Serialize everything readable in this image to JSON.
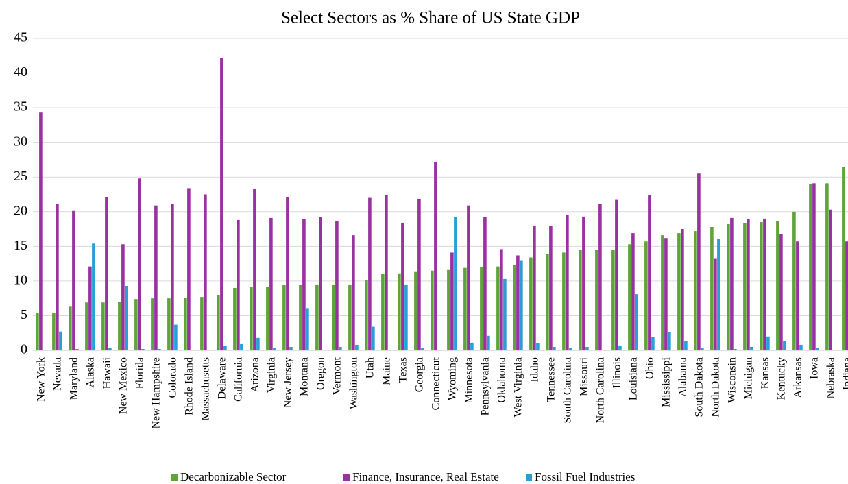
{
  "chart_data": {
    "type": "bar",
    "title": "Select Sectors as % Share of US State GDP",
    "categories": [
      "New York",
      "Nevada",
      "Maryland",
      "Alaska",
      "Hawaii",
      "New Mexico",
      "Florida",
      "New Hampshire",
      "Colorado",
      "Rhode Island",
      "Massachusetts",
      "Delaware",
      "California",
      "Arizona",
      "Virginia",
      "New Jersey",
      "Montana",
      "Oregon",
      "Vermont",
      "Washington",
      "Utah",
      "Maine",
      "Texas",
      "Georgia",
      "Connecticut",
      "Wyoming",
      "Minnesota",
      "Pennsylvania",
      "Oklahoma",
      "West Virginia",
      "Idaho",
      "Tennessee",
      "South Carolina",
      "Missouri",
      "North Carolina",
      "Illinois",
      "Louisiana",
      "Ohio",
      "Mississippi",
      "Alabama",
      "South Dakota",
      "North Dakota",
      "Wisconsin",
      "Michigan",
      "Kansas",
      "Kentucky",
      "Arkansas",
      "Iowa",
      "Nebraska",
      "Indiana"
    ],
    "series": [
      {
        "name": "Decarbonizable Sector",
        "color": "#5ea43a",
        "values": [
          5.4,
          5.4,
          6.3,
          6.9,
          6.9,
          7.0,
          7.4,
          7.5,
          7.5,
          7.6,
          7.7,
          8.0,
          9.0,
          9.2,
          9.2,
          9.4,
          9.5,
          9.5,
          9.5,
          9.5,
          10.1,
          11.0,
          11.1,
          11.3,
          11.5,
          11.6,
          11.9,
          12.0,
          12.1,
          12.3,
          13.4,
          13.9,
          14.1,
          14.5,
          14.5,
          14.5,
          15.3,
          15.7,
          16.6,
          16.9,
          17.2,
          17.8,
          18.2,
          18.3,
          18.5,
          18.6,
          20.0,
          24.0,
          24.1,
          26.5
        ]
      },
      {
        "name": "Finance, Insurance, Real Estate",
        "color": "#9932a0",
        "values": [
          34.3,
          21.1,
          20.1,
          12.1,
          22.1,
          15.3,
          24.8,
          20.9,
          21.1,
          23.4,
          22.5,
          42.2,
          18.8,
          23.3,
          19.1,
          22.1,
          18.9,
          19.2,
          18.6,
          16.6,
          22.0,
          22.4,
          18.4,
          21.8,
          27.2,
          14.1,
          20.9,
          19.2,
          14.6,
          13.7,
          18.0,
          17.9,
          19.5,
          19.3,
          21.1,
          21.7,
          16.9,
          22.4,
          16.2,
          17.5,
          25.5,
          13.2,
          19.1,
          18.9,
          19.0,
          16.8,
          15.7,
          24.1,
          20.3,
          15.7
        ]
      },
      {
        "name": "Fossil Fuel Industries",
        "color": "#2a9fd6",
        "values": [
          0.1,
          2.7,
          0.2,
          15.4,
          0.4,
          9.3,
          0.2,
          0.2,
          3.7,
          0.1,
          0.1,
          0.7,
          0.9,
          1.8,
          0.3,
          0.5,
          6.0,
          0.1,
          0.5,
          0.8,
          3.4,
          0.1,
          9.5,
          0.4,
          0.1,
          19.2,
          1.1,
          2.1,
          10.3,
          13.0,
          1.0,
          0.5,
          0.3,
          0.5,
          0.1,
          0.7,
          8.1,
          1.9,
          2.6,
          1.3,
          0.3,
          16.1,
          0.2,
          0.5,
          2.0,
          1.3,
          0.8,
          0.3,
          0.1,
          0.3
        ]
      }
    ],
    "ylim": [
      0,
      45
    ],
    "yticks": [
      0,
      5,
      10,
      15,
      20,
      25,
      30,
      35,
      40,
      45
    ],
    "grid": true,
    "legend": "bottom"
  }
}
